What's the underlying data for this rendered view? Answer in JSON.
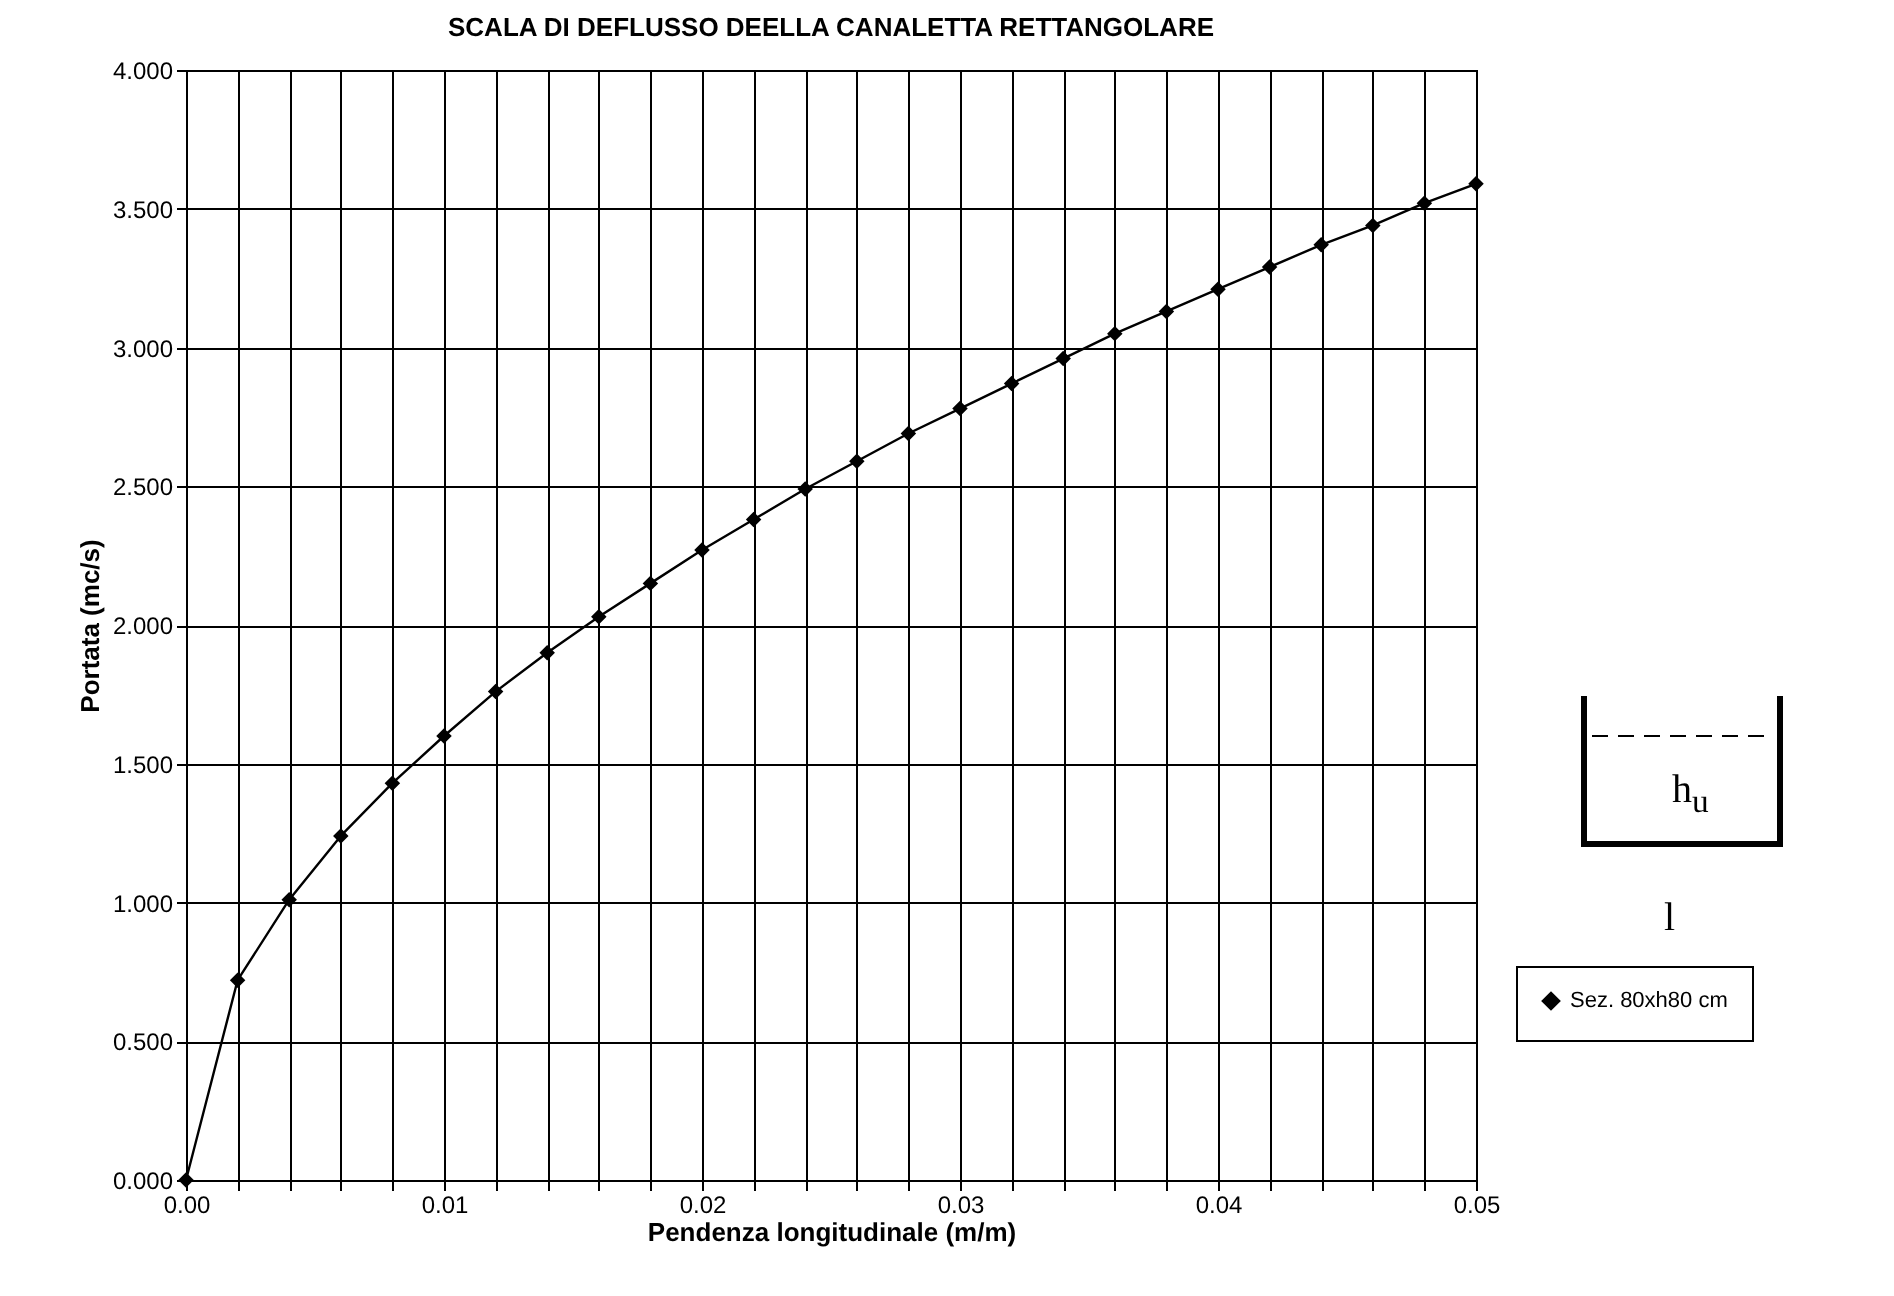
{
  "chart_data": {
    "type": "line",
    "title": "SCALA DI DEFLUSSO DEELLA CANALETTA RETTANGOLARE",
    "xlabel": "Pendenza longitudinale (m/m)",
    "ylabel": "Portata (mc/s)",
    "x": [
      0,
      0.002,
      0.004,
      0.006,
      0.008,
      0.01,
      0.012,
      0.014,
      0.016,
      0.018,
      0.02,
      0.022,
      0.024,
      0.026,
      0.028,
      0.03,
      0.032,
      0.034,
      0.036,
      0.038,
      0.04,
      0.042,
      0.044,
      0.046,
      0.048,
      0.05
    ],
    "series": [
      {
        "name": "Sez. 80xh80 cm",
        "color": "#000000",
        "values": [
          0,
          0.72,
          1.01,
          1.24,
          1.43,
          1.6,
          1.76,
          1.9,
          2.03,
          2.15,
          2.27,
          2.38,
          2.49,
          2.59,
          2.69,
          2.78,
          2.87,
          2.96,
          3.05,
          3.13,
          3.21,
          3.29,
          3.37,
          3.44,
          3.52,
          3.59
        ]
      }
    ],
    "xlim": [
      0,
      0.05
    ],
    "xticks": [
      {
        "value": 0,
        "label": "0.00"
      },
      {
        "value": 0.002,
        "label": null
      },
      {
        "value": 0.004,
        "label": null
      },
      {
        "value": 0.006,
        "label": null
      },
      {
        "value": 0.008,
        "label": null
      },
      {
        "value": 0.01,
        "label": "0.01"
      },
      {
        "value": 0.012,
        "label": null
      },
      {
        "value": 0.014,
        "label": null
      },
      {
        "value": 0.016,
        "label": null
      },
      {
        "value": 0.018,
        "label": null
      },
      {
        "value": 0.02,
        "label": "0.02"
      },
      {
        "value": 0.022,
        "label": null
      },
      {
        "value": 0.024,
        "label": null
      },
      {
        "value": 0.026,
        "label": null
      },
      {
        "value": 0.028,
        "label": null
      },
      {
        "value": 0.03,
        "label": "0.03"
      },
      {
        "value": 0.032,
        "label": null
      },
      {
        "value": 0.034,
        "label": null
      },
      {
        "value": 0.036,
        "label": null
      },
      {
        "value": 0.038,
        "label": null
      },
      {
        "value": 0.04,
        "label": "0.04"
      },
      {
        "value": 0.042,
        "label": null
      },
      {
        "value": 0.044,
        "label": null
      },
      {
        "value": 0.046,
        "label": null
      },
      {
        "value": 0.048,
        "label": null
      },
      {
        "value": 0.05,
        "label": "0.05"
      }
    ],
    "ylim": [
      0,
      4
    ],
    "yticks": [
      {
        "value": 0,
        "label": "0.000"
      },
      {
        "value": 0.5,
        "label": "0.500"
      },
      {
        "value": 1,
        "label": "1.000"
      },
      {
        "value": 1.5,
        "label": "1.500"
      },
      {
        "value": 2,
        "label": "2.000"
      },
      {
        "value": 2.5,
        "label": "2.500"
      },
      {
        "value": 3,
        "label": "3.000"
      },
      {
        "value": 3.5,
        "label": "3.500"
      },
      {
        "value": 4,
        "label": "4.000"
      }
    ],
    "grid": true,
    "legend": "right",
    "marker": "diamond",
    "line_style": "solid",
    "annotations": [
      "h$_{u}$",
      "l"
    ]
  }
}
